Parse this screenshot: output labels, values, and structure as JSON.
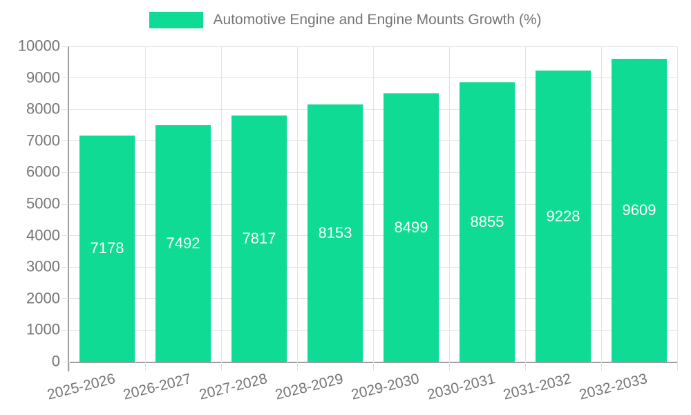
{
  "legend": {
    "label": "Automotive Engine and Engine Mounts Growth (%)"
  },
  "colors": {
    "bar": "#0fdb94",
    "grid": "#e3e3e3",
    "axis": "#9e9e9e",
    "text": "#757575",
    "value_label": "#ffffff",
    "background": "#ffffff"
  },
  "chart_data": {
    "type": "bar",
    "title": "Automotive Engine and Engine Mounts Growth (%)",
    "categories": [
      "2025-2026",
      "2026-2027",
      "2027-2028",
      "2028-2029",
      "2029-2030",
      "2030-2031",
      "2031-2032",
      "2032-2033"
    ],
    "values": [
      7178,
      7492,
      7817,
      8153,
      8499,
      8855,
      9228,
      9609
    ],
    "xlabel": "",
    "ylabel": "",
    "ylim": [
      0,
      10000
    ],
    "ytick_step": 1000,
    "ytick_labels": [
      "0",
      "1000",
      "2000",
      "3000",
      "4000",
      "5000",
      "6000",
      "7000",
      "8000",
      "9000",
      "10000"
    ],
    "grid": true,
    "legend_position": "top-center",
    "value_label_position": "inside-center",
    "x_label_rotation_deg": -14
  }
}
